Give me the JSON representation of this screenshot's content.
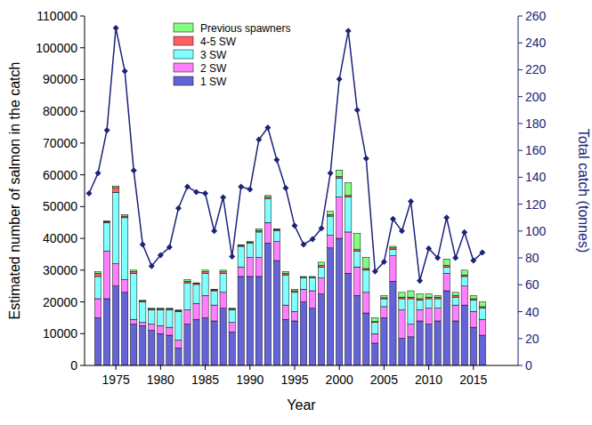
{
  "chart_data": {
    "type": "bar",
    "stacked": true,
    "grid": false,
    "legend": "upper center",
    "x_label": "Year",
    "y_label": "Estimated number of salmon in the catch",
    "y2_label": "Total catch (tonnes)",
    "x": [
      1972,
      1973,
      1974,
      1975,
      1976,
      1977,
      1978,
      1979,
      1980,
      1981,
      1982,
      1983,
      1984,
      1985,
      1986,
      1987,
      1988,
      1989,
      1990,
      1991,
      1992,
      1993,
      1994,
      1995,
      1996,
      1997,
      1998,
      1999,
      2000,
      2001,
      2002,
      2003,
      2004,
      2005,
      2006,
      2007,
      2008,
      2009,
      2010,
      2011,
      2012,
      2013,
      2014,
      2015,
      2016
    ],
    "xlim": [
      1971.5,
      2020
    ],
    "xticks": [
      1975,
      1980,
      1985,
      1990,
      1995,
      2000,
      2005,
      2010,
      2015
    ],
    "ylim": [
      0,
      110000
    ],
    "yticks": [
      0,
      10000,
      20000,
      30000,
      40000,
      50000,
      60000,
      70000,
      80000,
      90000,
      100000,
      110000
    ],
    "y2lim": [
      0,
      260
    ],
    "y2ticks": [
      0,
      20,
      40,
      60,
      80,
      100,
      120,
      140,
      160,
      180,
      200,
      220,
      240,
      260
    ],
    "series": [
      {
        "name": "1 SW",
        "color": "#6464d8",
        "values": [
          null,
          15000,
          21000,
          25000,
          23000,
          13000,
          12500,
          11000,
          10000,
          9500,
          5500,
          13000,
          14500,
          15000,
          14000,
          18000,
          10500,
          28000,
          28000,
          28000,
          38500,
          33000,
          14500,
          14000,
          20000,
          18000,
          22500,
          37000,
          40000,
          29000,
          22000,
          16500,
          7000,
          15000,
          26500,
          8500,
          9000,
          14000,
          13000,
          14000,
          23500,
          14000,
          19000,
          12000,
          9500
        ]
      },
      {
        "name": "2 SW",
        "color": "#ff80ff",
        "values": [
          null,
          6000,
          15000,
          7000,
          4000,
          1500,
          1000,
          2000,
          2500,
          2500,
          2500,
          4500,
          5000,
          7000,
          5000,
          5000,
          3000,
          3000,
          6000,
          6000,
          6500,
          6000,
          4500,
          3000,
          4000,
          5500,
          5000,
          4000,
          13000,
          13000,
          9000,
          6500,
          3000,
          3500,
          8000,
          9000,
          4000,
          3500,
          5000,
          4000,
          5500,
          5000,
          6000,
          5000,
          5000
        ]
      },
      {
        "name": "3 SW",
        "color": "#80ffff",
        "values": [
          null,
          7000,
          9000,
          22500,
          19500,
          14500,
          6500,
          4500,
          5000,
          5500,
          9000,
          8500,
          6000,
          7000,
          4500,
          6000,
          4000,
          6500,
          4500,
          8000,
          7500,
          3500,
          9500,
          6000,
          3500,
          4000,
          3500,
          6000,
          6000,
          11000,
          5000,
          7000,
          3500,
          2500,
          2000,
          3500,
          8000,
          3000,
          3000,
          3000,
          2000,
          2500,
          3000,
          3500,
          3500
        ]
      },
      {
        "name": "4-5 SW",
        "color": "#ff6060",
        "values": [
          null,
          1000,
          300,
          1500,
          500,
          500,
          300,
          300,
          300,
          300,
          300,
          500,
          300,
          500,
          300,
          500,
          300,
          300,
          300,
          500,
          500,
          300,
          500,
          500,
          300,
          300,
          500,
          500,
          500,
          500,
          500,
          500,
          300,
          300,
          500,
          500,
          500,
          500,
          500,
          500,
          500,
          500,
          500,
          500,
          500
        ]
      },
      {
        "name": "Previous spawners",
        "color": "#80ff80",
        "values": [
          null,
          500,
          200,
          500,
          500,
          500,
          200,
          200,
          200,
          200,
          200,
          500,
          200,
          500,
          200,
          500,
          200,
          200,
          200,
          500,
          500,
          200,
          500,
          500,
          200,
          200,
          1000,
          1000,
          2000,
          4000,
          5000,
          3500,
          1200,
          700,
          500,
          1500,
          2000,
          1500,
          1000,
          500,
          2000,
          1000,
          1500,
          1000,
          1500
        ]
      },
      {
        "name": "Total catch (tonnes)",
        "type": "line",
        "axis": "y2",
        "color": "#1c2378",
        "marker": "diamond",
        "values": [
          128,
          143,
          175,
          251,
          219,
          145,
          90,
          74,
          82,
          88,
          117,
          133,
          129,
          128,
          100,
          125,
          81,
          133,
          131,
          168,
          177,
          153,
          132,
          104,
          90,
          94,
          102,
          143,
          213,
          249,
          190,
          154,
          70,
          77,
          109,
          100,
          122,
          63,
          87,
          80,
          110,
          80,
          99,
          78,
          84
        ]
      }
    ]
  }
}
